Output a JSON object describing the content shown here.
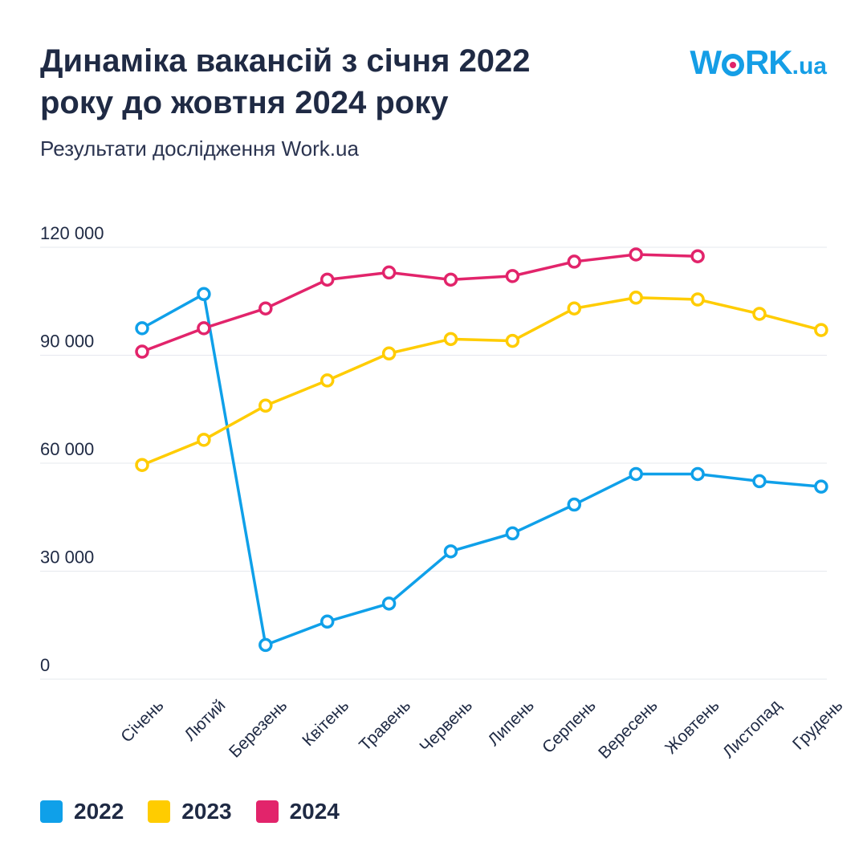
{
  "header": {
    "title_line1": "Динаміка вакансій з січня 2022",
    "title_line2": "року до жовтня 2024 року",
    "subtitle": "Результати дослідження Work.ua"
  },
  "logo": {
    "text": "WORK.ua",
    "part_w": "W",
    "part_rk": "RK",
    "part_ua": ".ua",
    "color": "#159ee6",
    "dot_color": "#e0246a"
  },
  "chart_data": {
    "type": "line",
    "title": "Динаміка вакансій з січня 2022 року до жовтня 2024 року",
    "subtitle": "Результати дослідження Work.ua",
    "xlabel": "",
    "ylabel": "",
    "ylim": [
      0,
      120000
    ],
    "yticks": [
      0,
      30000,
      60000,
      90000,
      120000
    ],
    "ytick_labels": [
      "0",
      "30 000",
      "60 000",
      "90 000",
      "120 000"
    ],
    "grid": true,
    "legend_position": "bottom-left",
    "categories": [
      "Січень",
      "Лютий",
      "Березень",
      "Квітень",
      "Травень",
      "Червень",
      "Липень",
      "Серпень",
      "Вересень",
      "Жовтень",
      "Листопад",
      "Грудень"
    ],
    "series": [
      {
        "name": "2022",
        "color": "#0fa0e9",
        "values": [
          97500,
          107000,
          9500,
          16000,
          21000,
          35500,
          40500,
          48500,
          57000,
          57000,
          55000,
          53500
        ]
      },
      {
        "name": "2023",
        "color": "#ffcc00",
        "values": [
          59500,
          66500,
          76000,
          83000,
          90500,
          94500,
          94000,
          103000,
          106000,
          105500,
          101500,
          97000
        ]
      },
      {
        "name": "2024",
        "color": "#e2246b",
        "values": [
          91000,
          97500,
          103000,
          111000,
          113000,
          111000,
          112000,
          116000,
          118000,
          117500,
          null,
          null
        ]
      }
    ]
  }
}
